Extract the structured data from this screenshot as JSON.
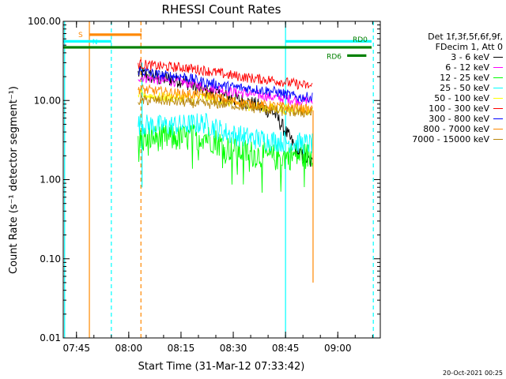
{
  "chart_data": {
    "type": "line",
    "title": "RHESSI Count Rates",
    "xlabel": "Start Time (31-Mar-12 07:33:42)",
    "ylabel": "Count Rate (s⁻¹ detector segment⁻¹)",
    "yscale": "log",
    "ylim": [
      0.01,
      100
    ],
    "xlim_minutes": [
      7.5,
      98.5
    ],
    "x_tick_labels": [
      "07:45",
      "08:00",
      "08:15",
      "08:30",
      "08:45",
      "09:00"
    ],
    "x_tick_minutes": [
      11.3,
      26.3,
      41.3,
      56.3,
      71.3,
      86.3
    ],
    "y_tick_labels": [
      "0.01",
      "0.10",
      "1.00",
      "10.00",
      "100.00"
    ],
    "y_tick_values": [
      0.01,
      0.1,
      1,
      10,
      100
    ],
    "legend_header": [
      "Det 1f,3f,5f,6f,9f,",
      "FDecim 1, Att 0"
    ],
    "legend_placement": "right",
    "grid": false,
    "series": [
      {
        "name": "3 - 6 keV",
        "color": "#000000",
        "x": [
          29,
          35,
          42,
          48,
          55,
          62,
          68,
          75,
          79
        ],
        "values": [
          22,
          19,
          18,
          13,
          11,
          9,
          7,
          2.2,
          1.6
        ]
      },
      {
        "name": "6 - 12 keV",
        "color": "#ff00ff",
        "x": [
          29,
          35,
          42,
          48,
          55,
          62,
          68,
          75,
          79
        ],
        "values": [
          20,
          18,
          17,
          15,
          13,
          12,
          11,
          10,
          10
        ]
      },
      {
        "name": "12 - 25 keV",
        "color": "#00ff00",
        "x": [
          29,
          35,
          42,
          48,
          55,
          62,
          68,
          75,
          79
        ],
        "values": [
          3.2,
          3.4,
          3.3,
          3.6,
          2.5,
          2.1,
          1.9,
          2.0,
          2.0
        ]
      },
      {
        "name": "25 - 50 keV",
        "color": "#00ffff",
        "x": [
          29,
          35,
          42,
          48,
          55,
          62,
          68,
          75,
          79
        ],
        "values": [
          5,
          4.8,
          4.9,
          5.2,
          3.8,
          3.3,
          3.1,
          2.9,
          2.8
        ]
      },
      {
        "name": "50 - 100 keV",
        "color": "#ffff00",
        "x": [
          29,
          35,
          42,
          48,
          55,
          62,
          68,
          75,
          79
        ],
        "values": [
          12,
          11,
          11,
          11,
          9.5,
          8.5,
          8.0,
          7.5,
          7.5
        ]
      },
      {
        "name": "100 - 300 keV",
        "color": "#ff0000",
        "x": [
          29,
          35,
          42,
          48,
          55,
          62,
          68,
          75,
          79
        ],
        "values": [
          29,
          27,
          26,
          24,
          21,
          19,
          18,
          16,
          15
        ]
      },
      {
        "name": "300 - 800 keV",
        "color": "#0000ff",
        "x": [
          29,
          35,
          42,
          48,
          55,
          62,
          68,
          75,
          79
        ],
        "values": [
          24,
          21,
          20,
          17,
          15,
          14,
          13,
          11,
          11
        ]
      },
      {
        "name": "800 - 7000 keV",
        "color": "#ff8800",
        "x": [
          29,
          35,
          42,
          48,
          55,
          62,
          68,
          75,
          79
        ],
        "values": [
          14,
          13,
          12,
          12,
          10,
          9,
          8.5,
          8,
          7.5
        ]
      },
      {
        "name": "7000 - 15000 keV",
        "color": "#b8860b",
        "x": [
          29,
          35,
          42,
          48,
          55,
          62,
          68,
          75,
          79
        ],
        "values": [
          10,
          10,
          9.5,
          9,
          9,
          8,
          7.5,
          7,
          7
        ]
      }
    ],
    "annotations": [
      {
        "label": "S",
        "kind": "bar",
        "color": "#ff8800",
        "x_start": 15,
        "x_end": 30,
        "value": 68
      },
      {
        "label": "N",
        "kind": "bar",
        "color": "#00ffff",
        "x_start": 7.5,
        "x_end": 21.3,
        "value": 56
      },
      {
        "label": "RD0",
        "kind": "bar",
        "color": "#00ffff",
        "x_start": 71.3,
        "x_end": 96,
        "value": 56
      },
      {
        "label": "",
        "kind": "bar",
        "color": "#008000",
        "x_start": 7.5,
        "x_end": 96,
        "value": 47
      },
      {
        "label": "RD6",
        "kind": "bar",
        "color": "#008000",
        "x_start": 89,
        "x_end": 94.5,
        "value": 37
      }
    ],
    "markers": [
      {
        "color": "#ff8800",
        "style": "solid",
        "x": 15
      },
      {
        "color": "#ff8800",
        "style": "dashed",
        "x": 29.8
      },
      {
        "color": "#00ffff",
        "style": "solid",
        "x": 7.9
      },
      {
        "color": "#00ffff",
        "style": "dashed",
        "x": 21.3
      },
      {
        "color": "#00ffff",
        "style": "solid",
        "x": 71.3
      },
      {
        "color": "#00ffff",
        "style": "dashed",
        "x": 96.5
      },
      {
        "color": "#00ffff",
        "style": "solid",
        "x": 30.1,
        "y_from": 0.8,
        "y_to": 30
      },
      {
        "color": "#ff8800",
        "style": "solid",
        "x": 79.2,
        "y_from": 0.05,
        "y_to": 7.5
      }
    ]
  },
  "footer": "20-Oct-2021 00:25"
}
